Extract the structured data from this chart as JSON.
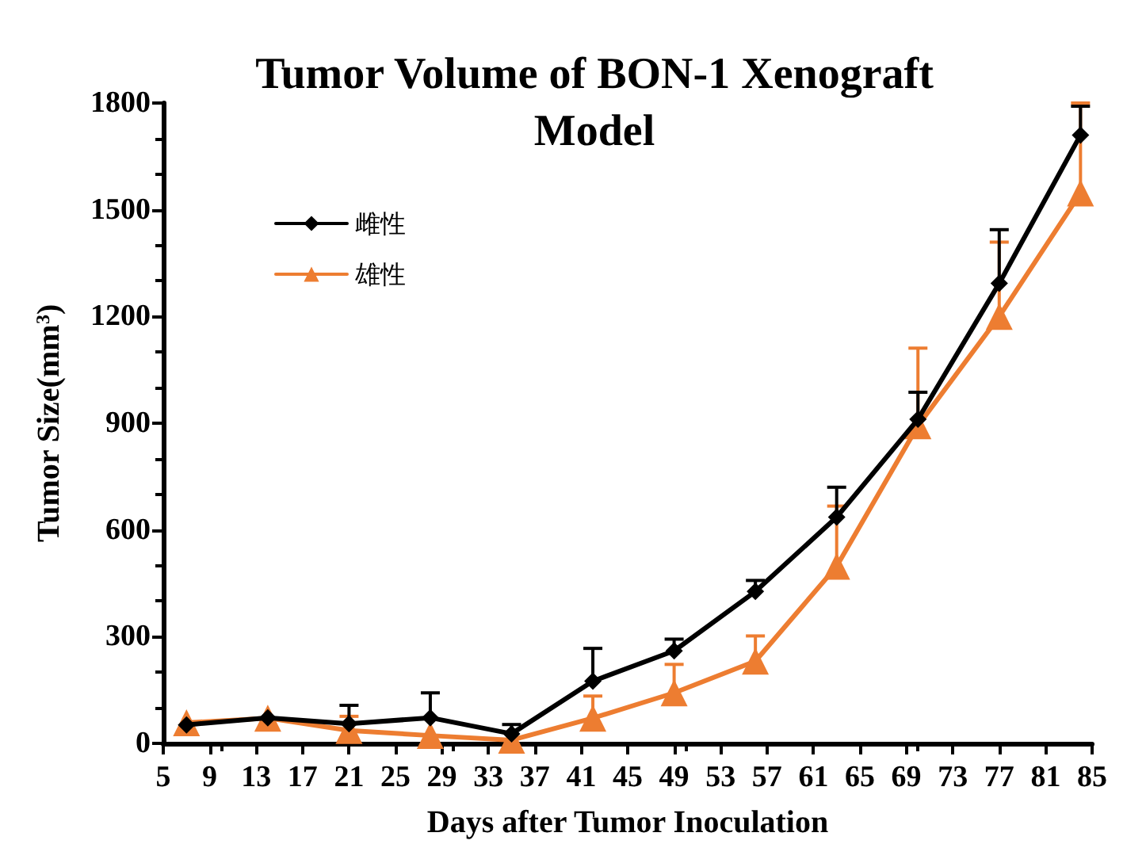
{
  "chart_data": {
    "type": "line",
    "title": "Tumor Volume of BON-1 Xenograft Model",
    "xlabel": "Days after Tumor Inoculation",
    "ylabel": "Tumor Size(mm$^{3}$)",
    "x": [
      7,
      14,
      21,
      28,
      35,
      42,
      49,
      56,
      63,
      70,
      77,
      84
    ],
    "series": [
      {
        "name": "雌性",
        "color": "#000000",
        "marker": "diamond",
        "values": [
          52,
          72,
          55,
          72,
          27,
          175,
          260,
          427,
          636,
          911,
          1293,
          1710
        ],
        "errors": [
          null,
          null,
          [
            55,
            107
          ],
          [
            72,
            142
          ],
          [
            27,
            53
          ],
          [
            175,
            267
          ],
          [
            260,
            293
          ],
          [
            427,
            458
          ],
          [
            636,
            720
          ],
          [
            911,
            987
          ],
          [
            1293,
            1444
          ],
          [
            1710,
            1791
          ]
        ]
      },
      {
        "name": "雄性",
        "color": "#ed7d31",
        "marker": "triangle",
        "values": [
          58,
          71,
          36,
          22,
          9,
          71,
          142,
          231,
          498,
          893,
          1200,
          1547
        ],
        "errors": [
          null,
          null,
          [
            36,
            76
          ],
          null,
          null,
          [
            71,
            133
          ],
          [
            142,
            222
          ],
          [
            231,
            302
          ],
          [
            498,
            667
          ],
          [
            893,
            1111
          ],
          [
            1200,
            1409
          ],
          [
            1547,
            1800
          ]
        ]
      }
    ],
    "xlim": [
      5,
      85
    ],
    "xticks": [
      5,
      9,
      13,
      17,
      21,
      25,
      29,
      33,
      37,
      41,
      45,
      49,
      53,
      57,
      61,
      65,
      69,
      73,
      77,
      81,
      85
    ],
    "ylim": [
      0,
      1800
    ],
    "yticks": [
      0,
      300,
      600,
      900,
      1200,
      1500,
      1800
    ],
    "grid": false,
    "legend": "top left",
    "line_style": "solid"
  }
}
